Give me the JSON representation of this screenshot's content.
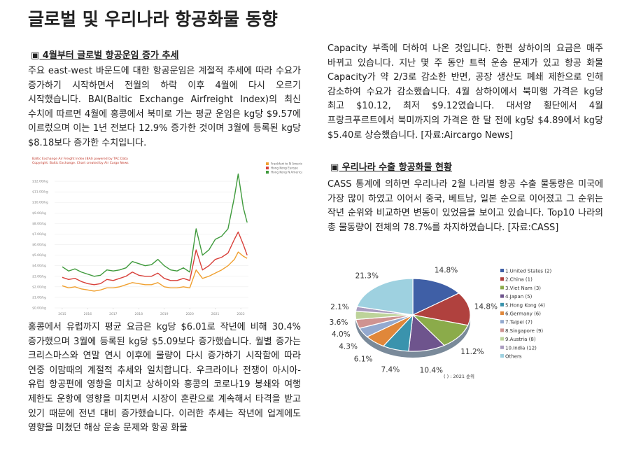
{
  "title": "글로벌 및 우리나라 항공화물 동향",
  "left": {
    "heading": "▣ 4월부터 글로벌 항공운임 증가 추세",
    "paragraphs": [
      "주요 east-west 바운드에 대한 항공운임은 계절적 추세에 따라 수요가 증가하기 시작하면서 전월의 하락 이후 4월에 다시 오르기 시작했습니다. BAI(Baltic Exchange Airfreight Index)의 최신 수치에 따르면 4월에 홍콩에서 북미로 가는 평균 운임은 kg당 $9.57에 이르렀으며 이는 1년 전보다 12.9% 증가한 것이며 3월에 등록된 kg당 $8.18보다 증가한 수치입니다.",
      "홍콩에서 유럽까지 평균 요금은 kg당 $6.01로 작년에 비해 30.4% 증가했으며 3월에 등록된 kg당 $5.09보다 증가했습니다. 월별 증가는 크리스마스와 연말 연시 이후에 물량이 다시 증가하기 시작함에 따라 연중 이맘때의 계절적 추세와 일치합니다. 우크라이나 전쟁이 아시아-유럽 항공편에 영향을 미치고 상하이와 홍콩의 코로나19 봉쇄와 여행 제한도 운항에 영향을 미치면서 시장이 혼란으로 계속해서 타격을 받고 있기 때문에 전년 대비 증가했습니다. 이러한 추세는 작년에 업계에도 영향을 미쳤던 해상 운송 문제와 항공 화물"
    ]
  },
  "right": {
    "continuation": "Capacity 부족에 더하여 나온 것입니다. 한편 상하이의 요금은 매주 바뀌고 있습니다. 지난 몇 주 동안 트럭 운송 문제가 있고 항공 화물 Capacity가 약 2/3로 감소한 반면, 공장 생산도 폐쇄 제한으로 인해 감소하여 수요가 감소했습니다. 4월 상하이에서 북미행 가격은 kg당 최고 $10.12, 최저 $9.12였습니다. 대서양 횡단에서 4월 프랑크푸르트에서 북미까지의 가격은 한 달 전에 kg당 $4.89에서 kg당 $5.40로 상승했습니다. [자료:Aircargo News]",
    "heading": "▣ 우리나라 수출 항공화물 현황",
    "paragraph": "CASS 통계에 의하면 우리나라 2월 나라별 항공 수출 물동량은 미국에 가장 많이 하였고 이어서 중국, 베트남, 일본 순으로 이어졌고 그 순위는 작년 순위와 비교하면 변동이 있었음을 보이고 있습니다. Top10 나라의 총 물동량이 전체의 78.7%를 차지하였습니다. [자료:CASS]"
  },
  "chart_data": [
    {
      "type": "line",
      "title": "Baltic Exchange Air Freight Index (BAI) powered by TAC Data",
      "subtitle": "Copyright: Baltic Exchange. Chart created by Air Cargo News",
      "x": [
        2015.0,
        2015.25,
        2015.5,
        2015.75,
        2016.0,
        2016.25,
        2016.5,
        2016.75,
        2017.0,
        2017.25,
        2017.5,
        2017.75,
        2018.0,
        2018.25,
        2018.5,
        2018.75,
        2019.0,
        2019.25,
        2019.5,
        2019.75,
        2020.0,
        2020.25,
        2020.5,
        2020.75,
        2021.0,
        2021.25,
        2021.5,
        2021.75,
        2021.9,
        2022.1,
        2022.25
      ],
      "xlim": [
        2014.7,
        2022.3
      ],
      "xticks": [
        2015,
        2016,
        2017,
        2018,
        2019,
        2020,
        2021,
        2022
      ],
      "ylim": [
        0,
        13
      ],
      "yticks": [
        {
          "value": 0,
          "label": "$0.00/kg"
        },
        {
          "value": 1,
          "label": "$1.00/kg"
        },
        {
          "value": 2,
          "label": "$2.00/kg"
        },
        {
          "value": 3,
          "label": "$3.00/kg"
        },
        {
          "value": 4,
          "label": "$4.00/kg"
        },
        {
          "value": 5,
          "label": "$5.00/kg"
        },
        {
          "value": 6,
          "label": "$6.00/kg"
        },
        {
          "value": 7,
          "label": "$7.00/kg"
        },
        {
          "value": 8,
          "label": "$8.00/kg"
        },
        {
          "value": 9,
          "label": "$9.00/kg"
        },
        {
          "value": 10,
          "label": "$10.00/kg"
        },
        {
          "value": 11,
          "label": "$11.00/kg"
        },
        {
          "value": 12,
          "label": "$12.00/kg"
        }
      ],
      "grid": true,
      "series": [
        {
          "name": "Frankfurt to N America",
          "color": "#f0a030",
          "values": [
            2.1,
            1.9,
            2.0,
            1.8,
            1.7,
            1.6,
            1.7,
            1.9,
            1.9,
            2.0,
            2.2,
            2.4,
            2.3,
            2.2,
            2.2,
            2.4,
            2.0,
            1.9,
            1.9,
            2.0,
            1.9,
            3.6,
            2.8,
            3.0,
            3.3,
            3.6,
            4.0,
            4.6,
            5.3,
            4.9,
            4.7
          ]
        },
        {
          "name": "Hong Kong Europe",
          "color": "#d8403a",
          "values": [
            2.9,
            2.7,
            2.8,
            2.5,
            2.3,
            2.2,
            2.3,
            2.7,
            2.6,
            2.8,
            3.0,
            3.4,
            3.1,
            3.0,
            3.0,
            3.3,
            2.8,
            2.6,
            2.6,
            2.8,
            2.6,
            5.5,
            3.6,
            4.0,
            4.6,
            4.8,
            5.2,
            6.5,
            7.2,
            6.0,
            5.0
          ]
        },
        {
          "name": "Hong Kong N America",
          "color": "#3f9a3c",
          "values": [
            3.9,
            3.5,
            3.7,
            3.4,
            3.2,
            3.0,
            3.1,
            3.6,
            3.5,
            3.6,
            3.8,
            4.4,
            4.2,
            4.0,
            4.1,
            4.6,
            4.0,
            3.6,
            3.5,
            3.8,
            3.4,
            7.5,
            5.0,
            5.5,
            6.5,
            6.8,
            7.5,
            10.5,
            12.7,
            9.5,
            8.1
          ]
        }
      ]
    },
    {
      "type": "pie",
      "categories": [
        "1.United States (2)",
        "2.China (1)",
        "3.Viet Nam (3)",
        "4.Japan (5)",
        "5.Hong Kong (4)",
        "6.Germany (6)",
        "7.Taipei (7)",
        "8.Singapore (9)",
        "9.Austria (8)",
        "10.India (12)",
        "Others"
      ],
      "values": [
        14.8,
        14.8,
        11.2,
        10.4,
        7.4,
        6.1,
        4.3,
        4.0,
        3.6,
        2.1,
        21.3
      ],
      "value_labels": [
        "14.8%",
        "14.8%",
        "11.2%",
        "10.4%",
        "7.4%",
        "6.1%",
        "4.3%",
        "4.0%",
        "3.6%",
        "2.1%",
        "21.3%"
      ],
      "colors": [
        "#3f5fa6",
        "#b0413e",
        "#8bab4a",
        "#6e548d",
        "#3a93ad",
        "#e0873a",
        "#93a9cf",
        "#cf9391",
        "#bdd39a",
        "#a99bbf",
        "#9ed1e0"
      ],
      "note": "( ) : 2021 순위"
    }
  ]
}
